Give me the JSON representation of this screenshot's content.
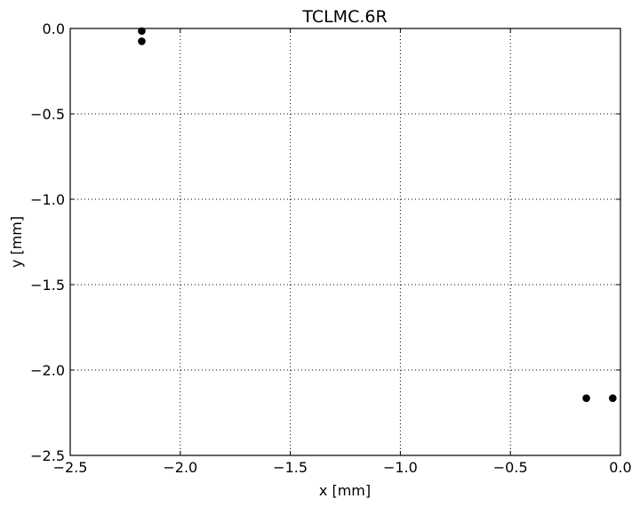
{
  "chart_data": {
    "type": "scatter",
    "title": "TCLMC.6R",
    "xlabel": "x [mm]",
    "ylabel": "y [mm]",
    "xlim": [
      -2.5,
      0.0
    ],
    "ylim": [
      -2.5,
      0.0
    ],
    "grid": true,
    "marker_color": "#000000",
    "x_ticks": [
      -2.5,
      -2.0,
      -1.5,
      -1.0,
      -0.5,
      0.0
    ],
    "x_tick_labels": [
      "−2.5",
      "−2.0",
      "−1.5",
      "−1.0",
      "−0.5",
      "0.0"
    ],
    "y_ticks": [
      0.0,
      -0.5,
      -1.0,
      -1.5,
      -2.0,
      -2.5
    ],
    "y_tick_labels": [
      "0.0",
      "−0.5",
      "−1.0",
      "−1.5",
      "−2.0",
      "−2.5"
    ],
    "points": [
      {
        "x": -2.175,
        "y": -0.015
      },
      {
        "x": -2.175,
        "y": -0.075
      },
      {
        "x": -0.155,
        "y": -2.165
      },
      {
        "x": -0.035,
        "y": -2.165
      }
    ]
  }
}
